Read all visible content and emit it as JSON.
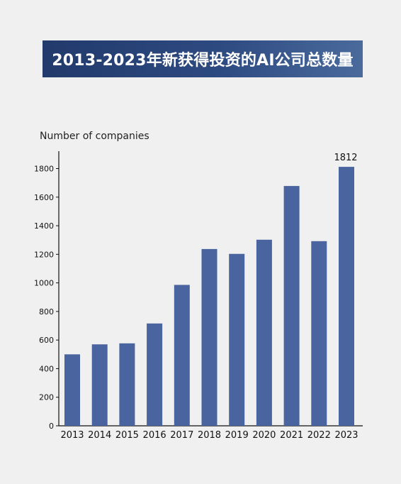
{
  "chart_data": {
    "type": "bar",
    "title": "2013-2023年新获得投资的AI公司总数量",
    "ylabel": "Number of companies",
    "xlabel": "",
    "categories": [
      "2013",
      "2014",
      "2015",
      "2016",
      "2017",
      "2018",
      "2019",
      "2020",
      "2021",
      "2022",
      "2023"
    ],
    "values": [
      500,
      570,
      577,
      716,
      986,
      1237,
      1203,
      1302,
      1678,
      1292,
      1812
    ],
    "ylim": [
      0,
      1900
    ],
    "yticks": [
      0,
      200,
      400,
      600,
      800,
      1000,
      1200,
      1400,
      1600,
      1800
    ],
    "data_labels": [
      {
        "category": "2023",
        "text": "1812"
      }
    ],
    "bar_color": "#4a64a0",
    "grid": false,
    "legend": "none"
  }
}
